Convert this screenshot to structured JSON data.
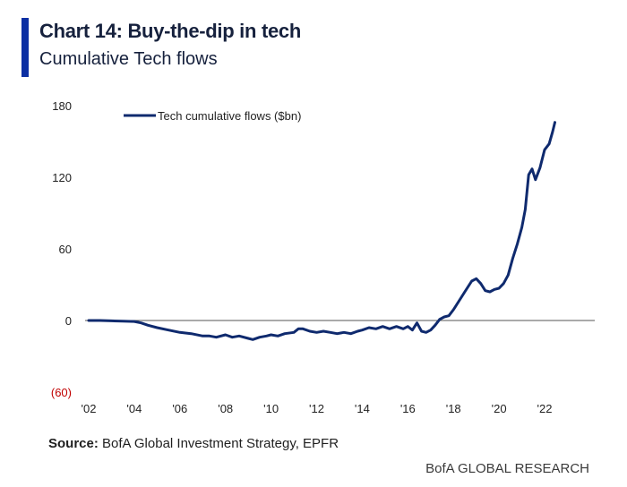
{
  "header": {
    "title": "Chart 14: Buy-the-dip in tech",
    "subtitle": "Cumulative Tech flows"
  },
  "footer": {
    "source_label": "Source:",
    "source_text": "BofA Global Investment Strategy, EPFR",
    "brand": "BofA GLOBAL RESEARCH"
  },
  "colors": {
    "accent": "#0c2fa3",
    "series": "#0f2a6e",
    "negative_label": "#c00000",
    "zero_line": "#555555"
  },
  "chart_data": {
    "type": "line",
    "title": "",
    "xlabel": "",
    "ylabel": "",
    "ylim": [
      -60,
      180
    ],
    "xlim": [
      2002,
      2024.2
    ],
    "yticks": [
      {
        "value": 180,
        "label": "180"
      },
      {
        "value": 120,
        "label": "120"
      },
      {
        "value": 60,
        "label": "60"
      },
      {
        "value": 0,
        "label": "0"
      },
      {
        "value": -60,
        "label": "(60)"
      }
    ],
    "xticks": [
      {
        "value": 2002,
        "label": "'02"
      },
      {
        "value": 2004,
        "label": "'04"
      },
      {
        "value": 2006,
        "label": "'06"
      },
      {
        "value": 2008,
        "label": "'08"
      },
      {
        "value": 2010,
        "label": "'10"
      },
      {
        "value": 2012,
        "label": "'12"
      },
      {
        "value": 2014,
        "label": "'14"
      },
      {
        "value": 2016,
        "label": "'16"
      },
      {
        "value": 2018,
        "label": "'18"
      },
      {
        "value": 2020,
        "label": "'20"
      },
      {
        "value": 2022,
        "label": "'22"
      }
    ],
    "grid": false,
    "legend_position": "top-left",
    "series": [
      {
        "name": "Tech cumulative flows ($bn)",
        "points": [
          [
            2002.0,
            0
          ],
          [
            2002.5,
            0
          ],
          [
            2003.0,
            -0.3
          ],
          [
            2003.5,
            -0.5
          ],
          [
            2004.0,
            -0.8
          ],
          [
            2004.3,
            -2
          ],
          [
            2004.6,
            -4
          ],
          [
            2005.0,
            -6
          ],
          [
            2005.5,
            -8
          ],
          [
            2006.0,
            -10
          ],
          [
            2006.5,
            -11
          ],
          [
            2007.0,
            -13
          ],
          [
            2007.3,
            -13
          ],
          [
            2007.6,
            -14
          ],
          [
            2008.0,
            -12
          ],
          [
            2008.3,
            -14
          ],
          [
            2008.6,
            -13
          ],
          [
            2009.0,
            -15
          ],
          [
            2009.2,
            -16
          ],
          [
            2009.5,
            -14
          ],
          [
            2009.8,
            -13
          ],
          [
            2010.0,
            -12
          ],
          [
            2010.3,
            -13
          ],
          [
            2010.6,
            -11
          ],
          [
            2011.0,
            -10
          ],
          [
            2011.2,
            -7
          ],
          [
            2011.4,
            -7
          ],
          [
            2011.7,
            -9
          ],
          [
            2012.0,
            -10
          ],
          [
            2012.3,
            -9
          ],
          [
            2012.6,
            -10
          ],
          [
            2012.9,
            -11
          ],
          [
            2013.2,
            -10
          ],
          [
            2013.5,
            -11
          ],
          [
            2013.8,
            -9
          ],
          [
            2014.0,
            -8
          ],
          [
            2014.3,
            -6
          ],
          [
            2014.6,
            -7
          ],
          [
            2014.9,
            -5
          ],
          [
            2015.2,
            -7
          ],
          [
            2015.5,
            -5
          ],
          [
            2015.8,
            -7
          ],
          [
            2016.0,
            -5
          ],
          [
            2016.2,
            -8
          ],
          [
            2016.4,
            -2
          ],
          [
            2016.6,
            -9
          ],
          [
            2016.8,
            -10
          ],
          [
            2017.0,
            -8
          ],
          [
            2017.2,
            -4
          ],
          [
            2017.4,
            1
          ],
          [
            2017.6,
            3
          ],
          [
            2017.8,
            4
          ],
          [
            2018.0,
            9
          ],
          [
            2018.2,
            15
          ],
          [
            2018.5,
            24
          ],
          [
            2018.8,
            33
          ],
          [
            2019.0,
            35
          ],
          [
            2019.2,
            31
          ],
          [
            2019.4,
            25
          ],
          [
            2019.6,
            24
          ],
          [
            2019.8,
            26
          ],
          [
            2020.0,
            27
          ],
          [
            2020.2,
            31
          ],
          [
            2020.4,
            38
          ],
          [
            2020.6,
            52
          ],
          [
            2020.8,
            64
          ],
          [
            2021.0,
            78
          ],
          [
            2021.15,
            93
          ],
          [
            2021.3,
            122
          ],
          [
            2021.45,
            127
          ],
          [
            2021.6,
            118
          ],
          [
            2021.8,
            128
          ],
          [
            2022.0,
            143
          ],
          [
            2022.2,
            148
          ],
          [
            2022.35,
            158
          ],
          [
            2022.45,
            166
          ]
        ]
      }
    ]
  }
}
